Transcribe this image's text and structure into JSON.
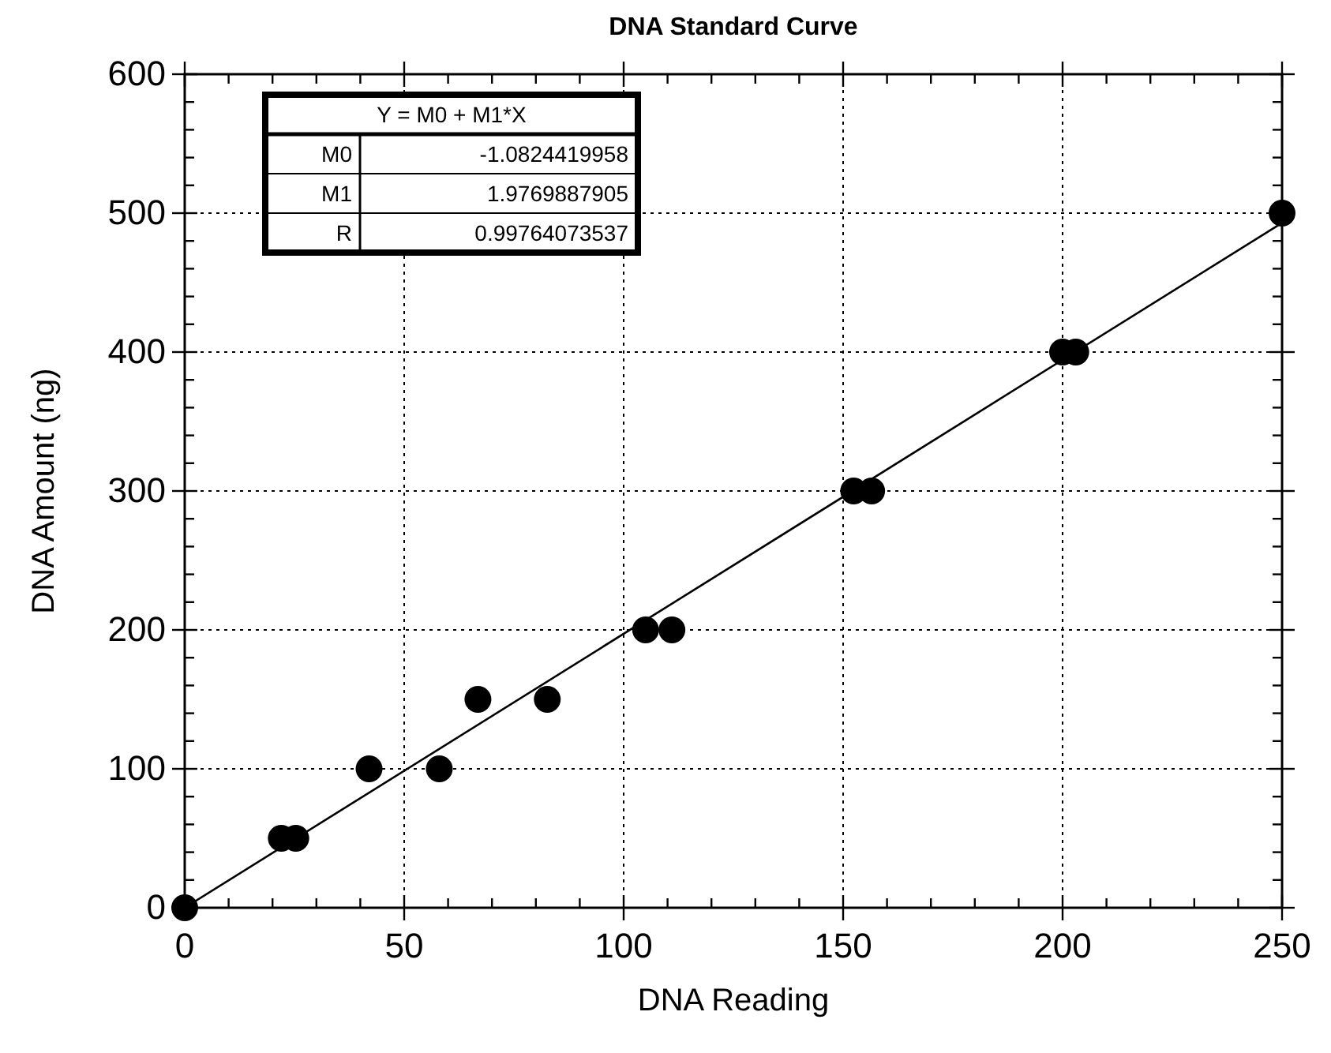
{
  "chart_data": {
    "type": "scatter",
    "title": "DNA Standard Curve",
    "xlabel": "DNA Reading",
    "ylabel": "DNA Amount (ng)",
    "xlim": [
      0,
      250
    ],
    "xticks": [
      0,
      50,
      100,
      150,
      200,
      250
    ],
    "ylim": [
      0,
      600
    ],
    "yticks": [
      0,
      100,
      200,
      300,
      400,
      500,
      600
    ],
    "grid": true,
    "legend": false,
    "annotations": [
      "Y = M0 + M1*X",
      "M0",
      "-1.0824419958",
      "M1",
      "1.9769887905",
      "R",
      "0.99764073537"
    ],
    "series": [
      {
        "type": "scatter",
        "marker": "circle",
        "color": "#000000",
        "x": [
          0,
          22,
          25.3,
          42,
          58,
          66.8,
          82.6,
          105,
          111,
          152.4,
          156.5,
          200,
          203,
          250
        ],
        "values": [
          0,
          50,
          50,
          100,
          100,
          150,
          150,
          200,
          200,
          300,
          300,
          400,
          400,
          500
        ]
      },
      {
        "type": "line",
        "marker": "none",
        "color": "#000000",
        "line_style": "solid",
        "x": [
          0,
          250
        ],
        "values": [
          0,
          493
        ]
      }
    ]
  }
}
